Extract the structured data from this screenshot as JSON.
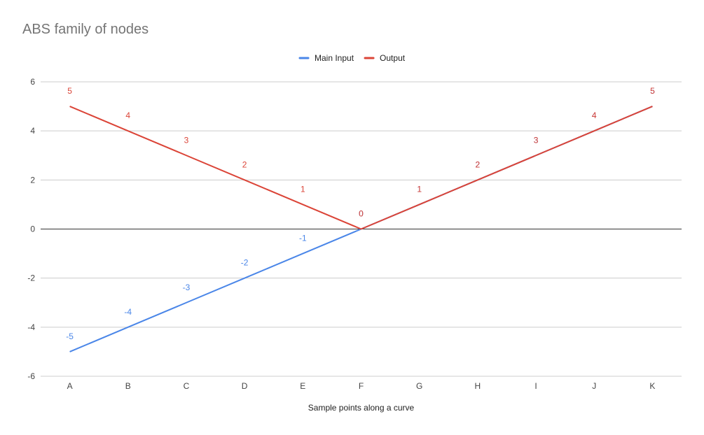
{
  "chart_data": {
    "type": "line",
    "title": "ABS family of nodes",
    "xlabel": "Sample points along a curve",
    "ylabel": "",
    "categories": [
      "A",
      "B",
      "C",
      "D",
      "E",
      "F",
      "G",
      "H",
      "I",
      "J",
      "K"
    ],
    "ylim": [
      -6,
      6
    ],
    "yticks": [
      -6,
      -4,
      -2,
      0,
      2,
      4,
      6
    ],
    "grid": true,
    "legend_position": "top",
    "data_labels": true,
    "series": [
      {
        "name": "Main Input",
        "color": "#4a86e8",
        "values": [
          -5,
          -4,
          -3,
          -2,
          -1,
          0,
          1,
          2,
          3,
          4,
          5
        ]
      },
      {
        "name": "Output",
        "color": "#db4437",
        "values": [
          5,
          4,
          3,
          2,
          1,
          0,
          1,
          2,
          3,
          4,
          5
        ]
      }
    ]
  }
}
